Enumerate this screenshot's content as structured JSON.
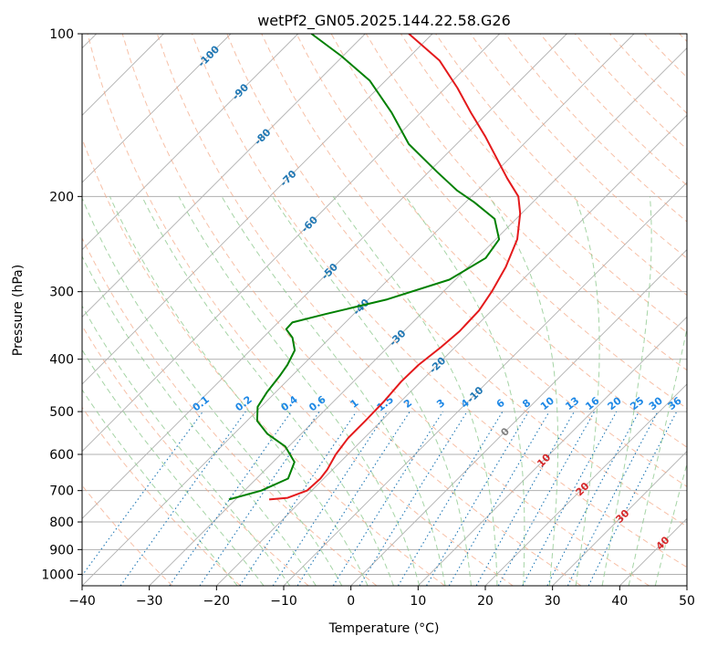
{
  "chart_data": {
    "type": "line",
    "subtype": "skew-t log-p diagram",
    "title": "wetPf2_GN05.2025.144.22.58.G26",
    "xlabel": "Temperature (°C)",
    "ylabel": "Pressure (hPa)",
    "xlim": [
      -40,
      50
    ],
    "ylim": [
      1050,
      100
    ],
    "y_scale": "log",
    "skew": 45,
    "grid": true,
    "x_ticks": [
      -40,
      -30,
      -20,
      -10,
      0,
      10,
      20,
      30,
      40,
      50
    ],
    "y_ticks": [
      100,
      200,
      300,
      400,
      500,
      600,
      700,
      800,
      900,
      1000
    ],
    "colors": {
      "temperature": "#e41a1c",
      "dewpoint": "#008000",
      "isotherm": "#b0b0b0",
      "dry_adiabat": "#f4a582",
      "moist_adiabat": "#8fc98f",
      "mixing_ratio": "#1f77b4",
      "isotherm_label_neg": "#1f77b4",
      "isotherm_label_pos": "#d62728",
      "isotherm_label_zero": "#808080",
      "mixing_label": "#1e88e5"
    },
    "series": [
      {
        "name": "Temperature",
        "points": [
          {
            "p": 727,
            "t": -25.0
          },
          {
            "p": 722,
            "t": -22.5
          },
          {
            "p": 700,
            "t": -20.7
          },
          {
            "p": 665,
            "t": -20.5
          },
          {
            "p": 640,
            "t": -20.8
          },
          {
            "p": 600,
            "t": -21.8
          },
          {
            "p": 560,
            "t": -22.4
          },
          {
            "p": 520,
            "t": -22.4
          },
          {
            "p": 480,
            "t": -22.5
          },
          {
            "p": 440,
            "t": -22.9
          },
          {
            "p": 410,
            "t": -22.8
          },
          {
            "p": 380,
            "t": -22.1
          },
          {
            "p": 355,
            "t": -21.7
          },
          {
            "p": 325,
            "t": -21.9
          },
          {
            "p": 300,
            "t": -22.8
          },
          {
            "p": 270,
            "t": -24.4
          },
          {
            "p": 240,
            "t": -26.8
          },
          {
            "p": 215,
            "t": -30.2
          },
          {
            "p": 200,
            "t": -33.0
          },
          {
            "p": 185,
            "t": -37.4
          },
          {
            "p": 170,
            "t": -41.9
          },
          {
            "p": 155,
            "t": -46.8
          },
          {
            "p": 140,
            "t": -52.5
          },
          {
            "p": 126,
            "t": -58.2
          },
          {
            "p": 112,
            "t": -65.0
          },
          {
            "p": 100,
            "t": -73.5
          }
        ]
      },
      {
        "name": "Dewpoint",
        "points": [
          {
            "p": 727,
            "t": -31.0
          },
          {
            "p": 700,
            "t": -27.5
          },
          {
            "p": 665,
            "t": -25.3
          },
          {
            "p": 620,
            "t": -26.8
          },
          {
            "p": 580,
            "t": -30.5
          },
          {
            "p": 550,
            "t": -35.0
          },
          {
            "p": 520,
            "t": -38.5
          },
          {
            "p": 490,
            "t": -40.5
          },
          {
            "p": 460,
            "t": -41.3
          },
          {
            "p": 430,
            "t": -41.8
          },
          {
            "p": 410,
            "t": -42.3
          },
          {
            "p": 385,
            "t": -43.4
          },
          {
            "p": 365,
            "t": -45.6
          },
          {
            "p": 352,
            "t": -47.8
          },
          {
            "p": 342,
            "t": -47.9
          },
          {
            "p": 330,
            "t": -44.2
          },
          {
            "p": 310,
            "t": -37.2
          },
          {
            "p": 285,
            "t": -30.9
          },
          {
            "p": 260,
            "t": -28.7
          },
          {
            "p": 240,
            "t": -29.5
          },
          {
            "p": 220,
            "t": -33.2
          },
          {
            "p": 205,
            "t": -38.7
          },
          {
            "p": 195,
            "t": -43.0
          },
          {
            "p": 180,
            "t": -48.8
          },
          {
            "p": 160,
            "t": -57.1
          },
          {
            "p": 140,
            "t": -64.3
          },
          {
            "p": 122,
            "t": -72.4
          },
          {
            "p": 110,
            "t": -80.2
          },
          {
            "p": 100,
            "t": -88.0
          }
        ]
      }
    ],
    "isotherm_labels": [
      {
        "text": "-100",
        "t": -100,
        "p": 110
      },
      {
        "text": "-90",
        "t": -90,
        "p": 128
      },
      {
        "text": "-80",
        "t": -80,
        "p": 155
      },
      {
        "text": "-70",
        "t": -70,
        "p": 185
      },
      {
        "text": "-60",
        "t": -60,
        "p": 225
      },
      {
        "text": "-50",
        "t": -50,
        "p": 275
      },
      {
        "text": "-40",
        "t": -40,
        "p": 320
      },
      {
        "text": "-30",
        "t": -30,
        "p": 365
      },
      {
        "text": "-20",
        "t": -20,
        "p": 410
      },
      {
        "text": "-10",
        "t": -10,
        "p": 465
      },
      {
        "text": "0",
        "t": 0,
        "p": 545
      },
      {
        "text": "10",
        "t": 10,
        "p": 615
      },
      {
        "text": "20",
        "t": 20,
        "p": 695
      },
      {
        "text": "30",
        "t": 30,
        "p": 780
      },
      {
        "text": "40",
        "t": 40,
        "p": 875
      }
    ],
    "mixing_ratio_labels": [
      "0.1",
      "0.2",
      "0.4",
      "0.6",
      "1",
      "1.5",
      "2",
      "3",
      "4",
      "6",
      "8",
      "10",
      "13",
      "16",
      "20",
      "25",
      "30",
      "36"
    ]
  }
}
